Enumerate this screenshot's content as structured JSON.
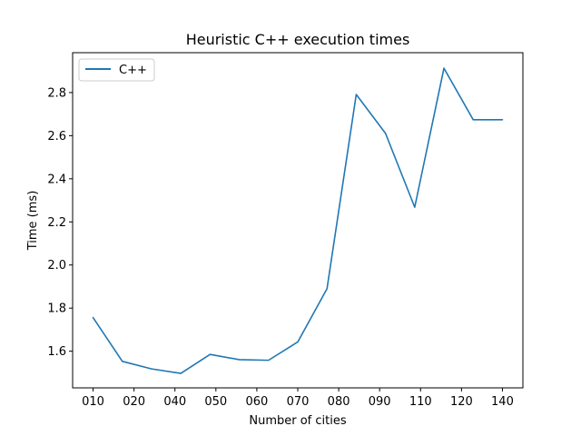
{
  "chart_data": {
    "type": "line",
    "title": "Heuristic C++ execution times",
    "xlabel": "Number of cities",
    "ylabel": "Time (ms)",
    "x_tick_labels": [
      "010",
      "020",
      "040",
      "050",
      "060",
      "070",
      "080",
      "090",
      "110",
      "120",
      "140"
    ],
    "x_tick_positions": [
      0,
      1.4,
      2.8,
      4.2,
      5.6,
      7.0,
      8.4,
      9.8,
      11.2,
      12.6,
      14.0
    ],
    "x": [
      0,
      1,
      2,
      3,
      4,
      5,
      6,
      7,
      8,
      9,
      10,
      11,
      12,
      13,
      14
    ],
    "series": [
      {
        "name": "C++",
        "color": "#1f77b4",
        "values": [
          1.756,
          1.553,
          1.518,
          1.497,
          1.585,
          1.561,
          1.558,
          1.643,
          1.89,
          2.791,
          2.611,
          2.268,
          2.913,
          2.674,
          2.674
        ]
      }
    ],
    "xlim": [
      -0.7,
      14.7
    ],
    "ylim": [
      1.43,
      2.985
    ],
    "y_ticks": [
      1.6,
      1.8,
      2.0,
      2.2,
      2.4,
      2.6,
      2.8
    ],
    "y_tick_labels": [
      "1.6",
      "1.8",
      "2.0",
      "2.2",
      "2.4",
      "2.6",
      "2.8"
    ],
    "grid": false,
    "legend_position": "top-left"
  }
}
